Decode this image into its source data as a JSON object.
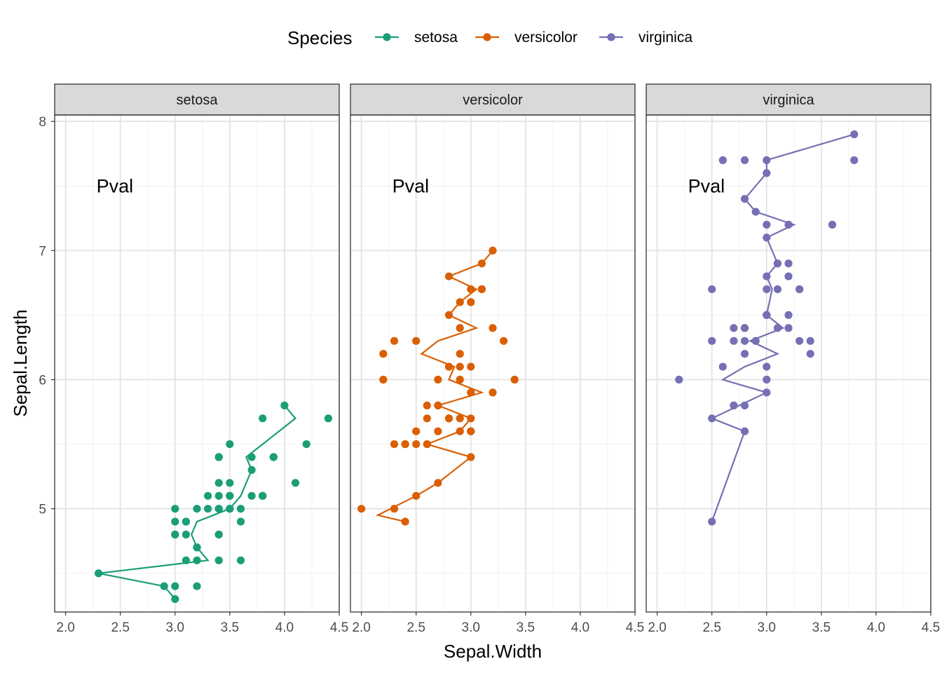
{
  "chart_data": {
    "type": "scatter",
    "facet_by": "Species",
    "xlabel": "Sepal.Width",
    "ylabel": "Sepal.Length",
    "xlim": [
      1.9,
      4.5
    ],
    "ylim": [
      4.2,
      8.05
    ],
    "x_ticks": [
      "2.0",
      "2.5",
      "3.0",
      "3.5",
      "4.0",
      "4.5"
    ],
    "y_ticks": [
      "5",
      "6",
      "7",
      "8"
    ],
    "grid": true,
    "legend": {
      "title": "Species",
      "position": "top"
    },
    "annotation": {
      "text": "Pval",
      "x": 2.45,
      "y": 7.5
    },
    "series": [
      {
        "name": "setosa",
        "color": "#1B9E77",
        "points": [
          [
            3.5,
            5.1
          ],
          [
            3.0,
            4.9
          ],
          [
            3.2,
            4.7
          ],
          [
            3.1,
            4.6
          ],
          [
            3.6,
            5.0
          ],
          [
            3.9,
            5.4
          ],
          [
            3.4,
            4.6
          ],
          [
            3.4,
            5.0
          ],
          [
            2.9,
            4.4
          ],
          [
            3.1,
            4.9
          ],
          [
            3.7,
            5.4
          ],
          [
            3.4,
            4.8
          ],
          [
            3.0,
            4.8
          ],
          [
            3.0,
            4.3
          ],
          [
            4.0,
            5.8
          ],
          [
            4.4,
            5.7
          ],
          [
            3.9,
            5.4
          ],
          [
            3.5,
            5.1
          ],
          [
            3.8,
            5.7
          ],
          [
            3.8,
            5.1
          ],
          [
            3.4,
            5.4
          ],
          [
            3.7,
            5.1
          ],
          [
            3.6,
            4.6
          ],
          [
            3.3,
            5.1
          ],
          [
            3.4,
            4.8
          ],
          [
            3.0,
            5.0
          ],
          [
            3.4,
            5.0
          ],
          [
            3.5,
            5.2
          ],
          [
            3.4,
            5.2
          ],
          [
            3.2,
            4.7
          ],
          [
            3.1,
            4.8
          ],
          [
            3.4,
            5.4
          ],
          [
            4.1,
            5.2
          ],
          [
            4.2,
            5.5
          ],
          [
            3.1,
            4.9
          ],
          [
            3.2,
            5.0
          ],
          [
            3.5,
            5.5
          ],
          [
            3.6,
            4.9
          ],
          [
            3.0,
            4.4
          ],
          [
            3.4,
            5.1
          ],
          [
            3.5,
            5.0
          ],
          [
            2.3,
            4.5
          ],
          [
            3.2,
            4.4
          ],
          [
            3.5,
            5.0
          ],
          [
            3.8,
            5.1
          ],
          [
            3.0,
            4.8
          ],
          [
            3.8,
            5.1
          ],
          [
            3.2,
            4.6
          ],
          [
            3.7,
            5.3
          ],
          [
            3.3,
            5.0
          ]
        ],
        "trend": [
          [
            3.0,
            4.3
          ],
          [
            2.9,
            4.4
          ],
          [
            2.3,
            4.5
          ],
          [
            3.3,
            4.6
          ],
          [
            3.2,
            4.7
          ],
          [
            3.15,
            4.8
          ],
          [
            3.2,
            4.9
          ],
          [
            3.5,
            5.0
          ],
          [
            3.6,
            5.1
          ],
          [
            3.65,
            5.2
          ],
          [
            3.7,
            5.3
          ],
          [
            3.65,
            5.4
          ],
          [
            3.8,
            5.5
          ],
          [
            4.1,
            5.7
          ],
          [
            4.0,
            5.8
          ]
        ]
      },
      {
        "name": "versicolor",
        "color": "#D95F02",
        "points": [
          [
            3.2,
            7.0
          ],
          [
            3.2,
            6.4
          ],
          [
            3.1,
            6.9
          ],
          [
            2.3,
            5.5
          ],
          [
            2.8,
            6.5
          ],
          [
            2.8,
            5.7
          ],
          [
            3.3,
            6.3
          ],
          [
            2.4,
            4.9
          ],
          [
            2.9,
            6.6
          ],
          [
            2.7,
            5.2
          ],
          [
            2.0,
            5.0
          ],
          [
            3.0,
            5.9
          ],
          [
            2.2,
            6.0
          ],
          [
            2.9,
            6.1
          ],
          [
            2.9,
            5.6
          ],
          [
            3.1,
            6.7
          ],
          [
            3.0,
            5.6
          ],
          [
            2.7,
            5.8
          ],
          [
            2.2,
            6.2
          ],
          [
            2.5,
            5.6
          ],
          [
            3.2,
            5.9
          ],
          [
            2.8,
            6.1
          ],
          [
            2.5,
            6.3
          ],
          [
            2.8,
            6.1
          ],
          [
            2.9,
            6.4
          ],
          [
            3.0,
            6.6
          ],
          [
            2.8,
            6.8
          ],
          [
            3.0,
            6.7
          ],
          [
            2.9,
            6.0
          ],
          [
            2.6,
            5.7
          ],
          [
            2.4,
            5.5
          ],
          [
            2.4,
            5.5
          ],
          [
            2.7,
            5.8
          ],
          [
            2.7,
            6.0
          ],
          [
            3.0,
            5.4
          ],
          [
            3.4,
            6.0
          ],
          [
            3.1,
            6.7
          ],
          [
            2.3,
            6.3
          ],
          [
            3.0,
            5.6
          ],
          [
            2.5,
            5.5
          ],
          [
            2.6,
            5.5
          ],
          [
            3.0,
            6.1
          ],
          [
            2.6,
            5.8
          ],
          [
            2.3,
            5.0
          ],
          [
            2.7,
            5.6
          ],
          [
            3.0,
            5.7
          ],
          [
            2.9,
            5.7
          ],
          [
            2.9,
            6.2
          ],
          [
            2.5,
            5.1
          ],
          [
            2.8,
            5.7
          ]
        ],
        "trend": [
          [
            2.4,
            4.9
          ],
          [
            2.15,
            4.95
          ],
          [
            2.5,
            5.1
          ],
          [
            2.7,
            5.2
          ],
          [
            3.0,
            5.4
          ],
          [
            2.6,
            5.5
          ],
          [
            2.9,
            5.6
          ],
          [
            3.0,
            5.7
          ],
          [
            2.7,
            5.8
          ],
          [
            3.1,
            5.9
          ],
          [
            2.8,
            6.0
          ],
          [
            2.85,
            6.1
          ],
          [
            2.55,
            6.2
          ],
          [
            2.7,
            6.3
          ],
          [
            3.05,
            6.4
          ],
          [
            2.8,
            6.5
          ],
          [
            2.9,
            6.6
          ],
          [
            3.05,
            6.7
          ],
          [
            2.8,
            6.8
          ],
          [
            3.1,
            6.9
          ],
          [
            3.2,
            7.0
          ]
        ]
      },
      {
        "name": "virginica",
        "color": "#7570B3",
        "points": [
          [
            3.3,
            6.3
          ],
          [
            2.7,
            5.8
          ],
          [
            3.0,
            7.1
          ],
          [
            2.9,
            6.3
          ],
          [
            3.0,
            6.5
          ],
          [
            3.0,
            7.6
          ],
          [
            2.5,
            4.9
          ],
          [
            2.9,
            7.3
          ],
          [
            2.5,
            6.7
          ],
          [
            3.6,
            7.2
          ],
          [
            3.2,
            6.5
          ],
          [
            2.7,
            6.4
          ],
          [
            3.0,
            6.8
          ],
          [
            2.5,
            5.7
          ],
          [
            2.8,
            5.8
          ],
          [
            3.2,
            6.4
          ],
          [
            3.0,
            6.5
          ],
          [
            3.8,
            7.7
          ],
          [
            2.6,
            7.7
          ],
          [
            2.2,
            6.0
          ],
          [
            3.2,
            6.9
          ],
          [
            2.8,
            5.6
          ],
          [
            2.8,
            7.7
          ],
          [
            2.7,
            6.3
          ],
          [
            3.3,
            6.7
          ],
          [
            3.2,
            7.2
          ],
          [
            2.8,
            6.2
          ],
          [
            3.0,
            6.1
          ],
          [
            2.8,
            6.4
          ],
          [
            3.0,
            7.2
          ],
          [
            2.8,
            7.4
          ],
          [
            3.8,
            7.9
          ],
          [
            2.8,
            6.4
          ],
          [
            2.8,
            6.3
          ],
          [
            2.6,
            6.1
          ],
          [
            3.0,
            7.7
          ],
          [
            3.4,
            6.3
          ],
          [
            3.1,
            6.4
          ],
          [
            3.0,
            6.0
          ],
          [
            3.1,
            6.9
          ],
          [
            3.1,
            6.7
          ],
          [
            3.1,
            6.9
          ],
          [
            2.7,
            5.8
          ],
          [
            3.2,
            6.8
          ],
          [
            3.3,
            6.7
          ],
          [
            3.0,
            6.7
          ],
          [
            2.5,
            6.3
          ],
          [
            3.0,
            6.5
          ],
          [
            3.4,
            6.2
          ],
          [
            3.0,
            5.9
          ]
        ],
        "trend": [
          [
            2.5,
            4.9
          ],
          [
            2.8,
            5.6
          ],
          [
            2.5,
            5.7
          ],
          [
            2.75,
            5.8
          ],
          [
            3.0,
            5.9
          ],
          [
            2.6,
            6.0
          ],
          [
            2.8,
            6.1
          ],
          [
            3.1,
            6.2
          ],
          [
            2.85,
            6.3
          ],
          [
            3.15,
            6.4
          ],
          [
            3.0,
            6.5
          ],
          [
            3.05,
            6.7
          ],
          [
            3.0,
            6.8
          ],
          [
            3.1,
            6.9
          ],
          [
            3.0,
            7.1
          ],
          [
            3.25,
            7.2
          ],
          [
            2.9,
            7.3
          ],
          [
            2.8,
            7.4
          ],
          [
            3.0,
            7.6
          ],
          [
            3.0,
            7.7
          ],
          [
            3.8,
            7.9
          ]
        ]
      }
    ]
  }
}
